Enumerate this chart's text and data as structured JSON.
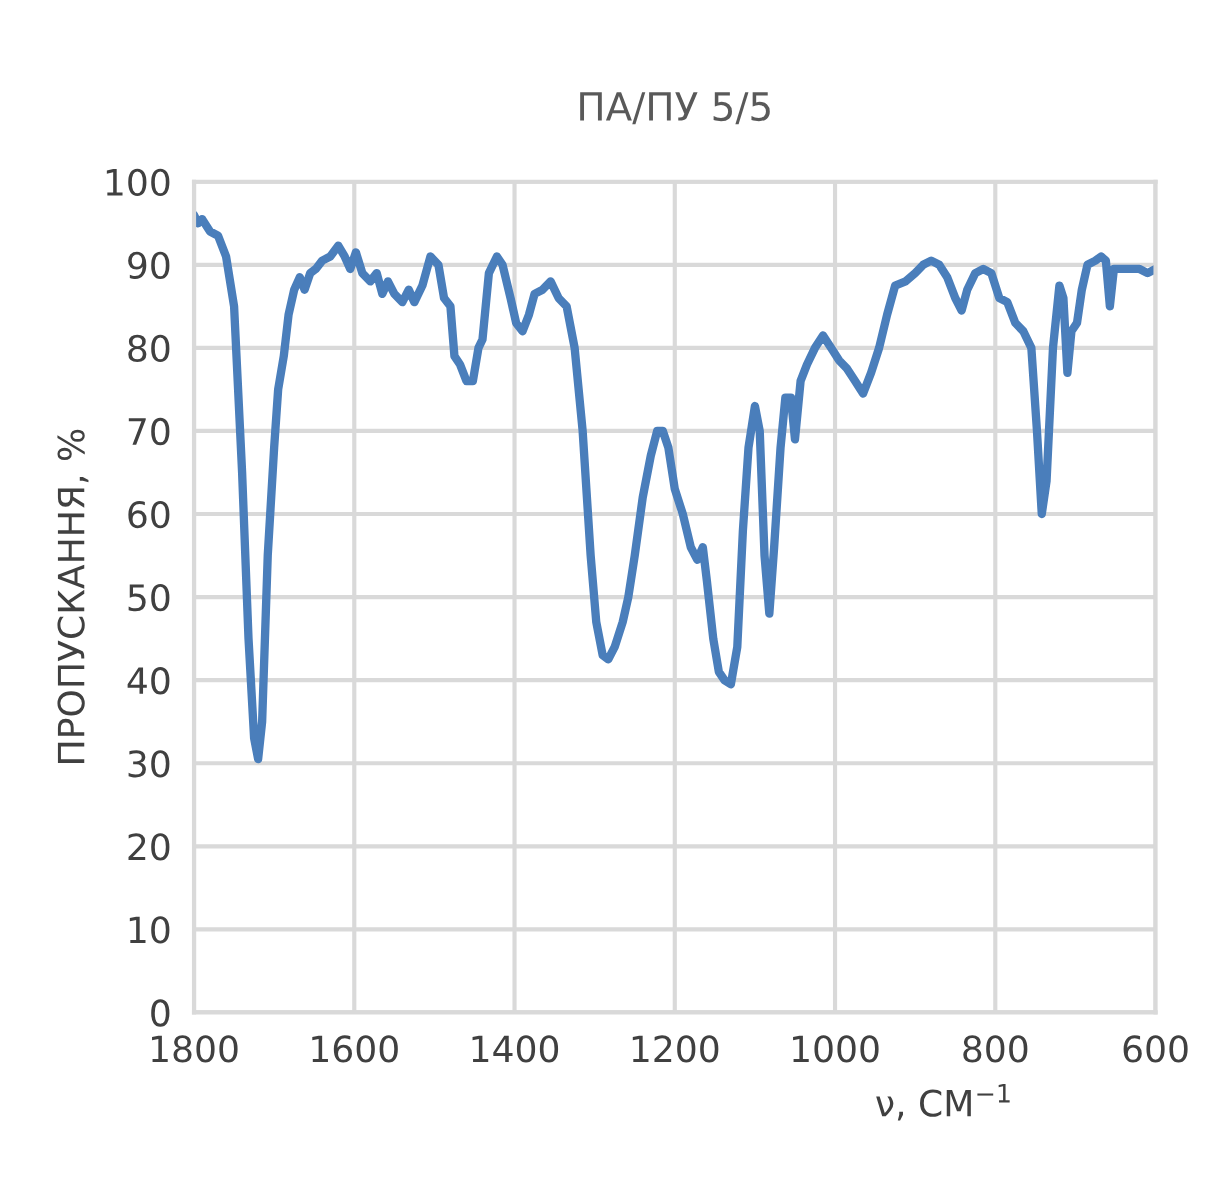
{
  "chart_data": {
    "type": "line",
    "title": "ПА/ПУ 5/5",
    "xlabel": "ν, СМ$^{−1}$",
    "ylabel": "ПРОПУСКАННЯ, %",
    "xlim": [
      1800,
      600
    ],
    "xticks": [
      1800,
      1600,
      1400,
      1200,
      1000,
      800,
      600
    ],
    "ylim": [
      0,
      100
    ],
    "yticks": [
      0,
      10,
      20,
      30,
      40,
      50,
      60,
      70,
      80,
      90,
      100
    ],
    "grid": true,
    "marker": "none",
    "line_style": "solid",
    "series": [
      {
        "color": "#4a7ebb",
        "x": [
          1800,
          1795,
          1790,
          1780,
          1770,
          1760,
          1750,
          1740,
          1732,
          1725,
          1720,
          1715,
          1708,
          1700,
          1695,
          1688,
          1682,
          1675,
          1668,
          1662,
          1655,
          1648,
          1640,
          1630,
          1620,
          1612,
          1605,
          1598,
          1590,
          1580,
          1572,
          1565,
          1558,
          1550,
          1540,
          1532,
          1525,
          1515,
          1505,
          1495,
          1488,
          1480,
          1475,
          1468,
          1460,
          1452,
          1445,
          1440,
          1432,
          1422,
          1415,
          1405,
          1398,
          1390,
          1382,
          1375,
          1365,
          1355,
          1345,
          1335,
          1325,
          1315,
          1305,
          1298,
          1290,
          1283,
          1275,
          1265,
          1258,
          1250,
          1240,
          1230,
          1222,
          1215,
          1208,
          1200,
          1190,
          1180,
          1172,
          1165,
          1160,
          1152,
          1145,
          1138,
          1130,
          1122,
          1115,
          1108,
          1100,
          1094,
          1088,
          1082,
          1076,
          1068,
          1062,
          1055,
          1050,
          1043,
          1035,
          1025,
          1015,
          1005,
          995,
          985,
          975,
          965,
          955,
          945,
          935,
          925,
          912,
          900,
          890,
          880,
          870,
          860,
          850,
          842,
          835,
          825,
          815,
          805,
          795,
          785,
          775,
          765,
          755,
          748,
          742,
          736,
          728,
          720,
          715,
          710,
          705,
          698,
          692,
          685,
          675,
          668,
          662,
          657,
          652,
          645,
          630,
          620,
          610,
          600
        ],
        "values": [
          96,
          95,
          95.5,
          94,
          93.5,
          91,
          85,
          65,
          45,
          33,
          30.5,
          35,
          55,
          68,
          75,
          79,
          84,
          87,
          88.5,
          87,
          89,
          89.5,
          90.5,
          91,
          92.3,
          91,
          89.5,
          91.5,
          89,
          88,
          89,
          86.5,
          88,
          86.5,
          85.5,
          87,
          85.5,
          87.5,
          91,
          90,
          86,
          85,
          79,
          78,
          76,
          76,
          80,
          81,
          89,
          91,
          90,
          86,
          83,
          82,
          84,
          86.5,
          87,
          88,
          86,
          85,
          80,
          70,
          55,
          47,
          43,
          42.5,
          44,
          47,
          50,
          55,
          62,
          67,
          70,
          70,
          68,
          63,
          60,
          56,
          54.5,
          56,
          52,
          45,
          41,
          40,
          39.5,
          44,
          58,
          68,
          73,
          70,
          55,
          48,
          56,
          68,
          74,
          74,
          69,
          76,
          78,
          80,
          81.5,
          80,
          78.5,
          77.5,
          76,
          74.5,
          77,
          80,
          84,
          87.5,
          88,
          89,
          90,
          90.5,
          90,
          88.5,
          86,
          84.5,
          87,
          89,
          89.5,
          89,
          86,
          85.5,
          83,
          82,
          80,
          70,
          60,
          64,
          80,
          87.5,
          86,
          77,
          82,
          83,
          87,
          90,
          90.5,
          91,
          90.5,
          85,
          89.5,
          89.5,
          89.5,
          89.5,
          89,
          89.5
        ]
      }
    ]
  }
}
